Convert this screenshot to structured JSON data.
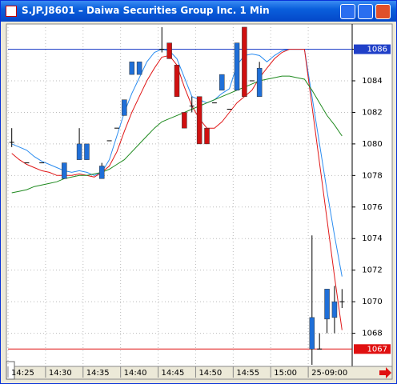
{
  "window": {
    "title": "S.JP.J8601 – Daiwa Securities Group Inc. 1 Min"
  },
  "chart_data": {
    "type": "candlestick",
    "categories": [
      "14:25",
      null,
      null,
      null,
      null,
      "14:30",
      null,
      null,
      null,
      null,
      "14:35",
      null,
      null,
      null,
      null,
      "14:40",
      null,
      null,
      null,
      null,
      "14:45",
      null,
      null,
      null,
      null,
      "14:50",
      null,
      null,
      null,
      null,
      "14:55",
      null,
      null,
      null,
      null,
      "15:00",
      null,
      null,
      null,
      null,
      "25-09:00",
      null,
      null,
      null,
      null
    ],
    "open": [
      1080.1,
      null,
      1078.8,
      null,
      1078.8,
      null,
      null,
      1077.8,
      null,
      1079,
      1079,
      null,
      1077.8,
      1080.2,
      1081,
      1081.8,
      1084.4,
      1084.4,
      null,
      null,
      1086,
      1086.4,
      1085,
      1082,
      1082.4,
      1083,
      1081,
      1082.6,
      1083.4,
      1082.2,
      1083.4,
      1087.4,
      1084,
      1083,
      null,
      null,
      null,
      null,
      null,
      null,
      1067,
      1067,
      1068.9,
      1069,
      1070
    ],
    "high": [
      1081,
      null,
      1078.8,
      null,
      1078.8,
      null,
      null,
      1078.8,
      null,
      1081,
      1080,
      null,
      1078.8,
      1080.2,
      1081,
      1082.8,
      1085.2,
      1085.2,
      null,
      null,
      1087.4,
      1086.4,
      1085,
      1082,
      1083,
      1083,
      1081,
      1082.6,
      1084.4,
      1082.2,
      1086.4,
      1087.4,
      1084,
      1085.2,
      null,
      null,
      null,
      null,
      null,
      null,
      1074.2,
      1068,
      1070.8,
      1071,
      1070.8
    ],
    "low": [
      1079.8,
      null,
      1078.8,
      null,
      1078.8,
      null,
      null,
      1077.8,
      null,
      1079,
      1079,
      null,
      1077.8,
      1080.2,
      1081,
      1081.8,
      1084.4,
      1084.4,
      null,
      null,
      1085.8,
      1085.4,
      1083,
      1081,
      1082,
      1080,
      1080,
      1082.6,
      1083.4,
      1082.2,
      1083.4,
      1083,
      1084,
      1083,
      null,
      null,
      null,
      null,
      null,
      null,
      1066,
      1067,
      1068,
      1068,
      1069.6
    ],
    "close": [
      1080.1,
      null,
      1078.8,
      null,
      1078.8,
      null,
      null,
      1078.8,
      null,
      1080,
      1080,
      null,
      1078.6,
      1080.2,
      1081,
      1082.8,
      1085.2,
      1085.2,
      null,
      null,
      1086,
      1085.4,
      1083,
      1081,
      1082.4,
      1080,
      1080,
      1082.6,
      1084.4,
      1082.2,
      1086.4,
      1083,
      1084,
      1084.8,
      null,
      null,
      null,
      null,
      null,
      null,
      1069,
      1067,
      1070.8,
      1070,
      1070
    ],
    "up_color": "#1f6fd8",
    "down_color": "#d01010",
    "series": [
      {
        "color": "#2a8cf0",
        "values": [
          1080.0,
          1079.8,
          1079.6,
          1079.2,
          1078.9,
          1078.7,
          1078.5,
          1078.3,
          1078.2,
          1078.3,
          1078.2,
          1078.0,
          1078.2,
          1079.0,
          1080.5,
          1082.0,
          1083.2,
          1084.2,
          1085.2,
          1085.8,
          1086.0,
          1085.9,
          1085.4,
          1084.2,
          1083.0,
          1082.8,
          1082.6,
          1082.8,
          1083.2,
          1083.5,
          1085.0,
          1085.6,
          1085.7,
          1085.6,
          1085.2,
          1085.6,
          1085.9,
          1086.0,
          1086.0,
          1086.0,
          1083.0,
          1080.0,
          1077.0,
          1074.2,
          1071.6
        ]
      },
      {
        "color": "#e01818",
        "values": [
          1079.4,
          1079.0,
          1078.7,
          1078.5,
          1078.3,
          1078.2,
          1078.0,
          1078.0,
          1078.0,
          1078.1,
          1078.0,
          1077.9,
          1078.2,
          1078.6,
          1079.5,
          1080.8,
          1082.0,
          1083.0,
          1084.0,
          1084.8,
          1085.5,
          1085.6,
          1085.0,
          1083.6,
          1082.4,
          1081.6,
          1081.0,
          1081.0,
          1081.4,
          1082.0,
          1082.6,
          1083.0,
          1083.4,
          1084.2,
          1084.8,
          1085.4,
          1085.8,
          1086.0,
          1086.0,
          1086.0,
          1082.4,
          1078.8,
          1075.2,
          1071.6,
          1068.2
        ]
      },
      {
        "color": "#1f8a1f",
        "values": [
          1076.9,
          1077.0,
          1077.1,
          1077.3,
          1077.4,
          1077.5,
          1077.6,
          1077.8,
          1077.9,
          1078.0,
          1078.0,
          1078.1,
          1078.2,
          1078.4,
          1078.7,
          1079.0,
          1079.5,
          1080.0,
          1080.5,
          1081.0,
          1081.4,
          1081.6,
          1081.8,
          1082.0,
          1082.2,
          1082.4,
          1082.6,
          1082.8,
          1083.0,
          1083.2,
          1083.4,
          1083.6,
          1083.8,
          1084.0,
          1084.1,
          1084.2,
          1084.3,
          1084.3,
          1084.2,
          1084.1,
          1083.4,
          1082.6,
          1081.8,
          1081.2,
          1080.5
        ]
      }
    ],
    "price_markers": [
      {
        "value": 1086,
        "color": "#2040c8"
      },
      {
        "value": 1067,
        "color": "#e01010"
      }
    ],
    "ylim": [
      1065.9,
      1087.6
    ],
    "yticks": [
      1068,
      1070,
      1072,
      1074,
      1076,
      1078,
      1080,
      1082,
      1084,
      1086
    ],
    "grid": true
  }
}
